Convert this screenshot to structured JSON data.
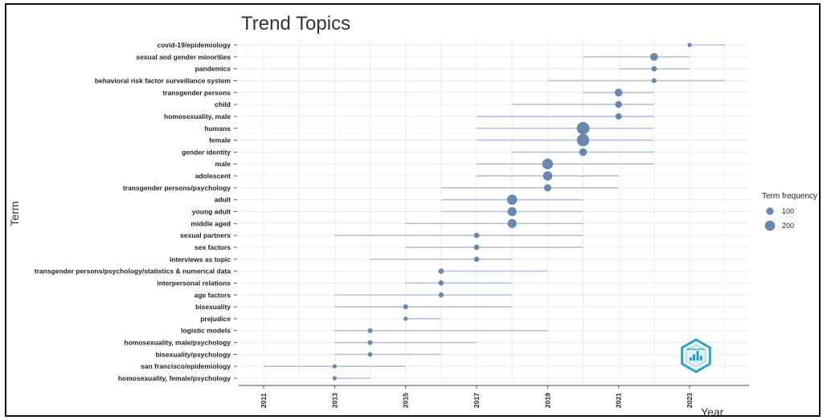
{
  "chart_data": {
    "type": "scatter",
    "title": "Trend Topics",
    "xlabel": "Year",
    "ylabel": "Term",
    "xlim": [
      2010.3,
      2024.3
    ],
    "x_ticks": [
      "2011",
      "2013",
      "2015",
      "2017",
      "2019",
      "2021",
      "2023"
    ],
    "grid": true,
    "legend": {
      "title": "Term frequency",
      "position": "right",
      "entries": [
        {
          "label": "100",
          "value": 100
        },
        {
          "label": "200",
          "value": 200
        }
      ]
    },
    "colors": {
      "point": "#6a87ad",
      "range": "#b4c2d6",
      "grid": "#ececec"
    },
    "terms": [
      {
        "term": "covid-19/epidemiology",
        "start": 2023,
        "median": 2023,
        "end": 2024,
        "freq": 30
      },
      {
        "term": "sexual and gender minorities",
        "start": 2020,
        "median": 2022,
        "end": 2023,
        "freq": 110
      },
      {
        "term": "pandemics",
        "start": 2021,
        "median": 2022,
        "end": 2023,
        "freq": 55
      },
      {
        "term": "behavioral risk factor surveillance system",
        "start": 2019,
        "median": 2022,
        "end": 2024,
        "freq": 45
      },
      {
        "term": "transgender persons",
        "start": 2020,
        "median": 2021,
        "end": 2022,
        "freq": 110
      },
      {
        "term": "child",
        "start": 2018,
        "median": 2021,
        "end": 2022,
        "freq": 85
      },
      {
        "term": "homosexuality, male",
        "start": 2017,
        "median": 2021,
        "end": 2022,
        "freq": 75
      },
      {
        "term": "humans",
        "start": 2017,
        "median": 2020,
        "end": 2022,
        "freq": 290
      },
      {
        "term": "female",
        "start": 2017,
        "median": 2020,
        "end": 2022,
        "freq": 280
      },
      {
        "term": "gender identity",
        "start": 2018,
        "median": 2020,
        "end": 2022,
        "freq": 110
      },
      {
        "term": "male",
        "start": 2017,
        "median": 2019,
        "end": 2022,
        "freq": 210
      },
      {
        "term": "adolescent",
        "start": 2017,
        "median": 2019,
        "end": 2021,
        "freq": 160
      },
      {
        "term": "transgender persons/psychology",
        "start": 2016,
        "median": 2019,
        "end": 2021,
        "freq": 100
      },
      {
        "term": "adult",
        "start": 2016,
        "median": 2018,
        "end": 2020,
        "freq": 190
      },
      {
        "term": "young adult",
        "start": 2016,
        "median": 2018,
        "end": 2020,
        "freq": 150
      },
      {
        "term": "middle aged",
        "start": 2015,
        "median": 2018,
        "end": 2020,
        "freq": 150
      },
      {
        "term": "sexual partners",
        "start": 2013,
        "median": 2017,
        "end": 2020,
        "freq": 55
      },
      {
        "term": "sex factors",
        "start": 2015,
        "median": 2017,
        "end": 2020,
        "freq": 55
      },
      {
        "term": "interviews as topic",
        "start": 2014,
        "median": 2017,
        "end": 2018,
        "freq": 50
      },
      {
        "term": "transgender persons/psychology/statistics & numerical data",
        "start": 2016,
        "median": 2016,
        "end": 2019,
        "freq": 55
      },
      {
        "term": "interpersonal relations",
        "start": 2015,
        "median": 2016,
        "end": 2018,
        "freq": 50
      },
      {
        "term": "age factors",
        "start": 2013,
        "median": 2016,
        "end": 2018,
        "freq": 50
      },
      {
        "term": "bisexuality",
        "start": 2013,
        "median": 2015,
        "end": 2018,
        "freq": 45
      },
      {
        "term": "prejudice",
        "start": 2015,
        "median": 2015,
        "end": 2016,
        "freq": 30
      },
      {
        "term": "logistic models",
        "start": 2013,
        "median": 2014,
        "end": 2019,
        "freq": 45
      },
      {
        "term": "homosexuality, male/psychology",
        "start": 2013,
        "median": 2014,
        "end": 2017,
        "freq": 45
      },
      {
        "term": "bisexuality/psychology",
        "start": 2013,
        "median": 2014,
        "end": 2016,
        "freq": 40
      },
      {
        "term": "san francisco/epidemiology",
        "start": 2011,
        "median": 2013,
        "end": 2015,
        "freq": 30
      },
      {
        "term": "homosexuality, female/psychology",
        "start": 2013,
        "median": 2013,
        "end": 2014,
        "freq": 30
      }
    ]
  },
  "logo": {
    "name": "bibliometrix-hexagon-logo",
    "text": "bibliometrix",
    "color": "#2aa0c8"
  }
}
